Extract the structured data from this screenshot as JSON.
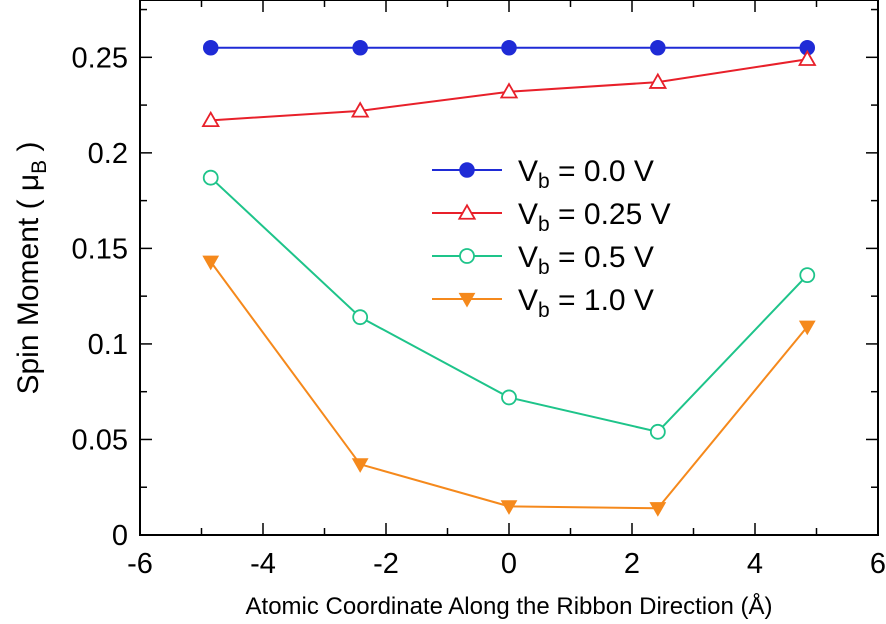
{
  "chart_data": {
    "type": "line",
    "title": "",
    "xlabel": "Atomic Coordinate Along the Ribbon Direction (Å)",
    "ylabel": "Spin Moment ( μ",
    "ylabel_sub": "B",
    "ylabel_end": " )",
    "xlim": [
      -6,
      6
    ],
    "ylim": [
      0,
      0.28
    ],
    "xticks": [
      -6,
      -4,
      -2,
      0,
      2,
      4,
      6
    ],
    "xtick_labels": [
      "-6",
      "-4",
      "-2",
      "0",
      "2",
      "4",
      "6"
    ],
    "yticks": [
      0,
      0.05,
      0.1,
      0.15,
      0.2,
      0.25
    ],
    "ytick_labels": [
      "0",
      "0.05",
      "0.1",
      "0.15",
      "0.2",
      "0.25"
    ],
    "x": [
      -4.85,
      -2.42,
      0,
      2.42,
      4.85
    ],
    "legend_position": "center-right",
    "series": [
      {
        "name": "V",
        "sub": "b",
        "suffix": " = 0.0 V",
        "marker": "filled-circle",
        "color": "#1f2bd6",
        "values": [
          0.255,
          0.255,
          0.255,
          0.255,
          0.255
        ]
      },
      {
        "name": "V",
        "sub": "b",
        "suffix": " = 0.25 V",
        "marker": "open-triangle-up",
        "color": "#e8202a",
        "values": [
          0.217,
          0.222,
          0.232,
          0.237,
          0.249
        ]
      },
      {
        "name": "V",
        "sub": "b",
        "suffix": " = 0.5 V",
        "marker": "open-circle",
        "color": "#1ec48a",
        "values": [
          0.187,
          0.114,
          0.072,
          0.054,
          0.136
        ]
      },
      {
        "name": "V",
        "sub": "b",
        "suffix": " = 1.0 V",
        "marker": "filled-triangle-down",
        "color": "#f5891c",
        "values": [
          0.143,
          0.037,
          0.015,
          0.014,
          0.109
        ]
      }
    ]
  }
}
